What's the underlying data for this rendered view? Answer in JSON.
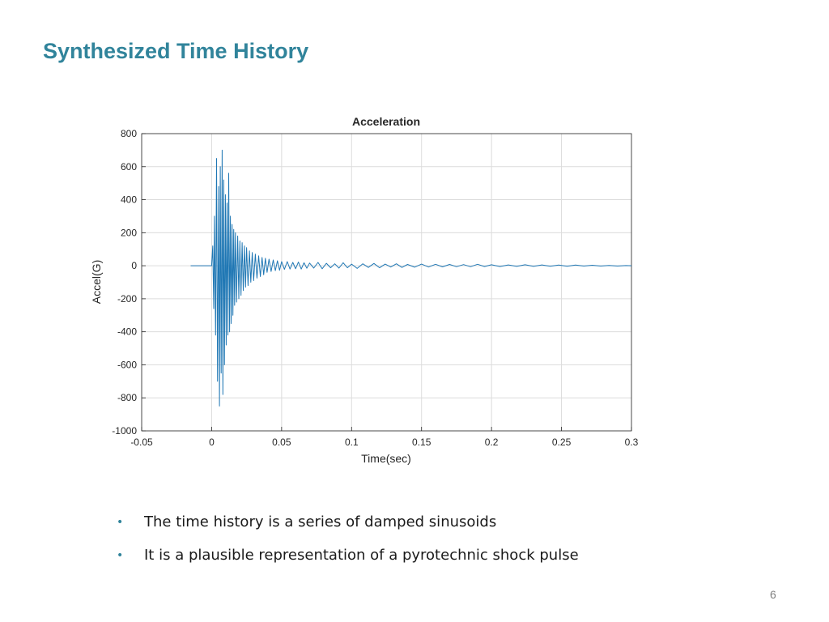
{
  "slide": {
    "title": "Synthesized Time History",
    "bullets": [
      "The time history is a series of damped sinusoids",
      "It is a plausible representation of a pyrotechnic shock pulse"
    ],
    "page_number": "6"
  },
  "chart_data": {
    "type": "line",
    "title": "Acceleration",
    "xlabel": "Time(sec)",
    "ylabel": "Accel(G)",
    "xlim": [
      -0.05,
      0.3
    ],
    "ylim": [
      -1000,
      800
    ],
    "xticks": [
      -0.05,
      0,
      0.05,
      0.1,
      0.15,
      0.2,
      0.25,
      0.3
    ],
    "xtick_labels": [
      "-0.05",
      "0",
      "0.05",
      "0.1",
      "0.15",
      "0.2",
      "0.25",
      "0.3"
    ],
    "yticks": [
      800,
      600,
      400,
      200,
      0,
      -200,
      -400,
      -600,
      -800,
      -1000
    ],
    "ytick_labels": [
      "800",
      "600",
      "400",
      "200",
      "0",
      "-200",
      "-400",
      "-600",
      "-800",
      "-1000"
    ],
    "grid": true,
    "line_color": "#1f77b4",
    "series": [
      {
        "x": [
          -0.015,
          0.0,
          0.0008,
          0.0015,
          0.002,
          0.0028,
          0.0035,
          0.0042,
          0.005,
          0.0056,
          0.0062,
          0.0068,
          0.0075,
          0.008,
          0.0086,
          0.0092,
          0.0098,
          0.0104,
          0.011,
          0.0116,
          0.0122,
          0.0128,
          0.0134,
          0.014,
          0.0146,
          0.0152,
          0.0158,
          0.0164,
          0.017,
          0.0178,
          0.0186,
          0.0194,
          0.0202,
          0.021,
          0.0218,
          0.0226,
          0.0234,
          0.0242,
          0.025,
          0.026,
          0.027,
          0.028,
          0.029,
          0.03,
          0.0312,
          0.0324,
          0.0336,
          0.0348,
          0.036,
          0.0372,
          0.0384,
          0.0396,
          0.041,
          0.0425,
          0.044,
          0.0455,
          0.047,
          0.0485,
          0.05,
          0.052,
          0.054,
          0.056,
          0.058,
          0.06,
          0.062,
          0.064,
          0.066,
          0.068,
          0.07,
          0.073,
          0.076,
          0.079,
          0.082,
          0.085,
          0.088,
          0.091,
          0.094,
          0.097,
          0.1,
          0.104,
          0.108,
          0.112,
          0.116,
          0.12,
          0.124,
          0.128,
          0.132,
          0.136,
          0.14,
          0.145,
          0.15,
          0.155,
          0.16,
          0.165,
          0.17,
          0.175,
          0.18,
          0.185,
          0.19,
          0.195,
          0.2,
          0.206,
          0.212,
          0.218,
          0.224,
          0.23,
          0.236,
          0.242,
          0.248,
          0.254,
          0.26,
          0.266,
          0.272,
          0.278,
          0.284,
          0.29,
          0.296,
          0.3
        ],
        "y": [
          0,
          0,
          120,
          -260,
          300,
          -420,
          650,
          -700,
          480,
          -850,
          600,
          -650,
          700,
          -780,
          520,
          -600,
          430,
          -480,
          380,
          -420,
          560,
          -400,
          300,
          -350,
          250,
          -300,
          220,
          -240,
          200,
          -220,
          180,
          -200,
          150,
          -180,
          140,
          -150,
          120,
          -130,
          110,
          -120,
          90,
          -100,
          80,
          -90,
          70,
          -75,
          60,
          -65,
          50,
          -55,
          45,
          -40,
          40,
          -35,
          35,
          -30,
          30,
          -28,
          25,
          -22,
          25,
          -20,
          20,
          -18,
          22,
          -20,
          18,
          -15,
          16,
          -14,
          20,
          -18,
          15,
          -12,
          12,
          -14,
          18,
          -12,
          10,
          -16,
          12,
          -10,
          14,
          -12,
          10,
          -8,
          12,
          -10,
          8,
          -9,
          10,
          -8,
          9,
          -7,
          8,
          -6,
          7,
          -6,
          9,
          -5,
          6,
          -5,
          5,
          -4,
          6,
          -4,
          5,
          -3,
          4,
          -3,
          4,
          -2,
          3,
          -2,
          2,
          -2,
          1,
          0
        ]
      }
    ]
  }
}
